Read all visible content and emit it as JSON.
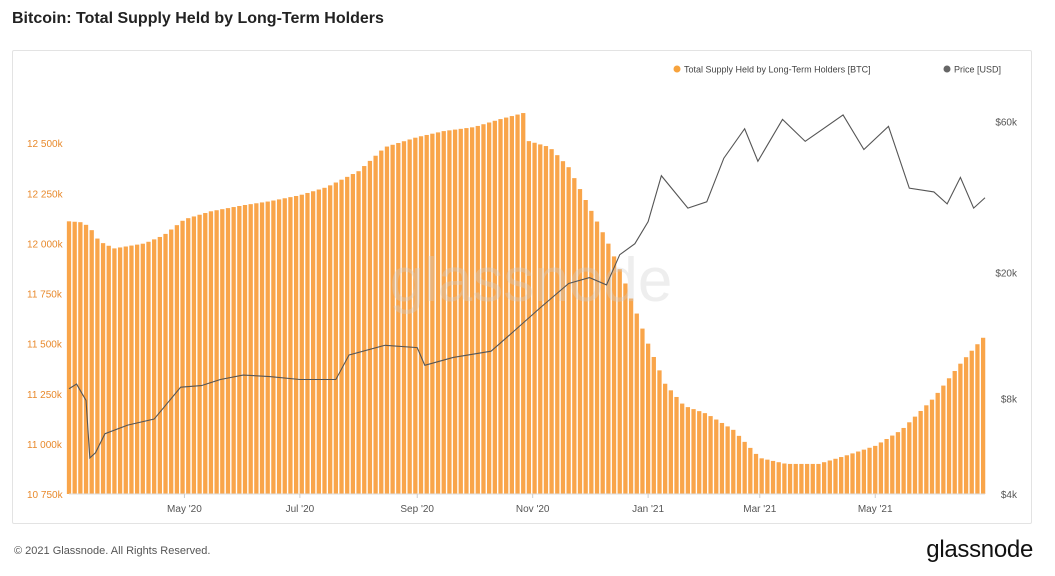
{
  "title": "Bitcoin: Total Supply Held by Long-Term Holders",
  "footer": {
    "copyright": "© 2021 Glassnode. All Rights Reserved.",
    "logo": "glassnode"
  },
  "watermark": "glassnode",
  "colors": {
    "supply": "#f7931a",
    "supply_fill": "#f9a54a",
    "price": "#555555",
    "axis_text_left": "#e8892b",
    "axis_text": "#555555"
  },
  "chart_data": {
    "type": "bar",
    "legend": [
      {
        "label": "Total Supply Held by Long-Term Holders [BTC]",
        "color": "#f7a33d",
        "icon": "dot"
      },
      {
        "label": "Price [USD]",
        "color": "#666666",
        "icon": "dot"
      }
    ],
    "legend_position": "top-right",
    "x_axis": {
      "ticks": [
        "May '20",
        "Jul '20",
        "Sep '20",
        "Nov '20",
        "Jan '21",
        "Mar '21",
        "May '21"
      ],
      "tick_dates": [
        "2020-05-01",
        "2020-07-01",
        "2020-09-01",
        "2020-11-01",
        "2021-01-01",
        "2021-03-01",
        "2021-05-01"
      ],
      "range": [
        "2020-03-01",
        "2021-06-28"
      ]
    },
    "y_left": {
      "ticks": [
        "10 750k",
        "11 000k",
        "11 250k",
        "11 500k",
        "11 750k",
        "12 000k",
        "12 250k",
        "12 500k"
      ],
      "range": [
        10750000,
        12760000
      ],
      "unit": "BTC"
    },
    "y_right": {
      "scale": "log",
      "ticks": [
        "$4k",
        "$8k",
        "$20k",
        "$60k"
      ],
      "tick_values": [
        4000,
        8000,
        20000,
        60000
      ],
      "range": [
        4000,
        75000
      ],
      "unit": "USD"
    },
    "series": [
      {
        "name": "Total Supply Held by Long-Term Holders [BTC]",
        "kind": "bar",
        "points": [
          [
            "2020-03-01",
            12110000
          ],
          [
            "2020-03-08",
            12105000
          ],
          [
            "2020-03-12",
            12080000
          ],
          [
            "2020-03-17",
            12010000
          ],
          [
            "2020-03-25",
            11975000
          ],
          [
            "2020-04-10",
            12000000
          ],
          [
            "2020-04-20",
            12040000
          ],
          [
            "2020-05-01",
            12120000
          ],
          [
            "2020-05-15",
            12160000
          ],
          [
            "2020-06-01",
            12190000
          ],
          [
            "2020-06-15",
            12210000
          ],
          [
            "2020-07-01",
            12240000
          ],
          [
            "2020-07-15",
            12280000
          ],
          [
            "2020-08-01",
            12360000
          ],
          [
            "2020-08-15",
            12480000
          ],
          [
            "2020-09-01",
            12530000
          ],
          [
            "2020-09-15",
            12560000
          ],
          [
            "2020-10-01",
            12580000
          ],
          [
            "2020-10-15",
            12620000
          ],
          [
            "2020-10-27",
            12650000
          ],
          [
            "2020-10-30",
            12510000
          ],
          [
            "2020-11-10",
            12480000
          ],
          [
            "2020-11-20",
            12380000
          ],
          [
            "2020-12-01",
            12180000
          ],
          [
            "2020-12-10",
            12020000
          ],
          [
            "2020-12-18",
            11850000
          ],
          [
            "2020-12-24",
            11700000
          ],
          [
            "2021-01-01",
            11500000
          ],
          [
            "2021-01-10",
            11300000
          ],
          [
            "2021-01-20",
            11190000
          ],
          [
            "2021-02-01",
            11150000
          ],
          [
            "2021-02-15",
            11070000
          ],
          [
            "2021-03-01",
            10930000
          ],
          [
            "2021-03-15",
            10900000
          ],
          [
            "2021-04-01",
            10900000
          ],
          [
            "2021-04-15",
            10940000
          ],
          [
            "2021-05-01",
            10990000
          ],
          [
            "2021-05-15",
            11070000
          ],
          [
            "2021-06-01",
            11230000
          ],
          [
            "2021-06-15",
            11400000
          ],
          [
            "2021-06-28",
            11540000
          ]
        ]
      },
      {
        "name": "Price [USD]",
        "kind": "line",
        "points": [
          [
            "2020-03-01",
            8600
          ],
          [
            "2020-03-05",
            8900
          ],
          [
            "2020-03-10",
            7900
          ],
          [
            "2020-03-12",
            5200
          ],
          [
            "2020-03-15",
            5400
          ],
          [
            "2020-03-20",
            6200
          ],
          [
            "2020-04-01",
            6600
          ],
          [
            "2020-04-15",
            6900
          ],
          [
            "2020-04-29",
            8700
          ],
          [
            "2020-05-10",
            8800
          ],
          [
            "2020-05-20",
            9200
          ],
          [
            "2020-06-01",
            9500
          ],
          [
            "2020-06-15",
            9400
          ],
          [
            "2020-07-01",
            9200
          ],
          [
            "2020-07-20",
            9200
          ],
          [
            "2020-07-27",
            11000
          ],
          [
            "2020-08-15",
            11800
          ],
          [
            "2020-09-01",
            11600
          ],
          [
            "2020-09-05",
            10200
          ],
          [
            "2020-09-20",
            10800
          ],
          [
            "2020-10-10",
            11300
          ],
          [
            "2020-10-21",
            12900
          ],
          [
            "2020-11-05",
            15500
          ],
          [
            "2020-11-20",
            18500
          ],
          [
            "2020-12-01",
            19300
          ],
          [
            "2020-12-10",
            18300
          ],
          [
            "2020-12-17",
            22800
          ],
          [
            "2020-12-25",
            24700
          ],
          [
            "2021-01-01",
            29000
          ],
          [
            "2021-01-08",
            40500
          ],
          [
            "2021-01-22",
            32000
          ],
          [
            "2021-02-01",
            33500
          ],
          [
            "2021-02-10",
            46000
          ],
          [
            "2021-02-21",
            57000
          ],
          [
            "2021-02-28",
            45000
          ],
          [
            "2021-03-13",
            61000
          ],
          [
            "2021-03-25",
            52000
          ],
          [
            "2021-04-14",
            63000
          ],
          [
            "2021-04-25",
            49000
          ],
          [
            "2021-05-08",
            58000
          ],
          [
            "2021-05-19",
            37000
          ],
          [
            "2021-06-01",
            36000
          ],
          [
            "2021-06-08",
            33000
          ],
          [
            "2021-06-15",
            40000
          ],
          [
            "2021-06-22",
            32000
          ],
          [
            "2021-06-28",
            34500
          ]
        ]
      }
    ]
  }
}
